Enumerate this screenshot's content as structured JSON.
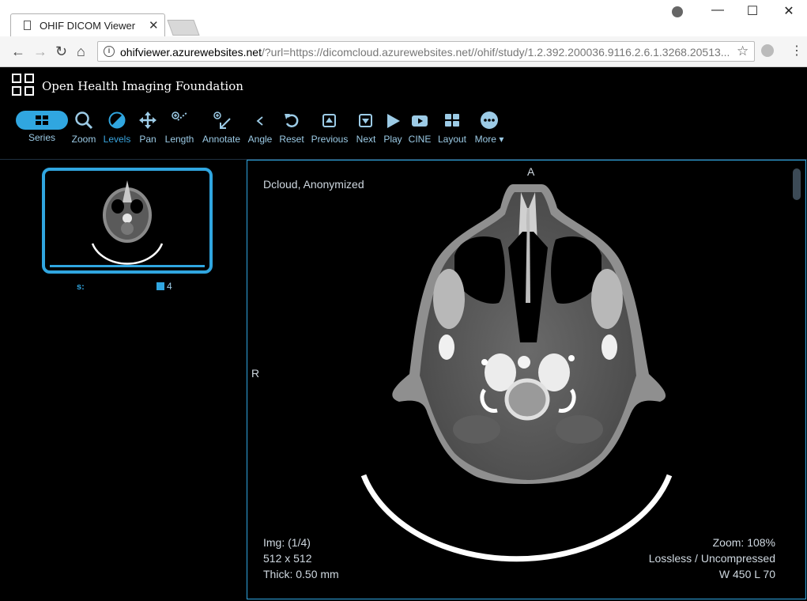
{
  "browser": {
    "tab_title": "OHIF DICOM Viewer",
    "url_host": "ohifviewer.azurewebsites.net",
    "url_rest": "/?url=https://dicomcloud.azurewebsites.net//ohif/study/1.2.392.200036.9116.2.6.1.3268.20513..."
  },
  "app": {
    "brand": "Open Health Imaging Foundation",
    "tools": [
      {
        "label": "Series",
        "icon": "series-grid-icon"
      },
      {
        "label": "Zoom",
        "icon": "magnifier-icon"
      },
      {
        "label": "Levels",
        "icon": "contrast-icon"
      },
      {
        "label": "Pan",
        "icon": "move-arrows-icon"
      },
      {
        "label": "Length",
        "icon": "ruler-icon"
      },
      {
        "label": "Annotate",
        "icon": "annotate-arrow-icon"
      },
      {
        "label": "Angle",
        "icon": "angle-icon"
      },
      {
        "label": "Reset",
        "icon": "undo-icon"
      },
      {
        "label": "Previous",
        "icon": "previous-icon"
      },
      {
        "label": "Next",
        "icon": "next-icon"
      },
      {
        "label": "Play",
        "icon": "play-icon"
      },
      {
        "label": "CINE",
        "icon": "cine-icon"
      },
      {
        "label": "Layout",
        "icon": "layout-icon"
      },
      {
        "label": "More",
        "icon": "more-icon"
      }
    ],
    "active_tool": "Levels",
    "accent_color": "#30a6e0"
  },
  "thumbnail": {
    "label": "s:",
    "count": "4"
  },
  "viewport": {
    "top_left": "Dcloud, Anonymized",
    "orient_top": "A",
    "orient_left": "R",
    "img": "Img: (1/4)",
    "size": "512 x 512",
    "thick": "Thick: 0.50 mm",
    "zoom": "Zoom: 108%",
    "compression": "Lossless / Uncompressed",
    "wl": "W 450 L 70"
  }
}
